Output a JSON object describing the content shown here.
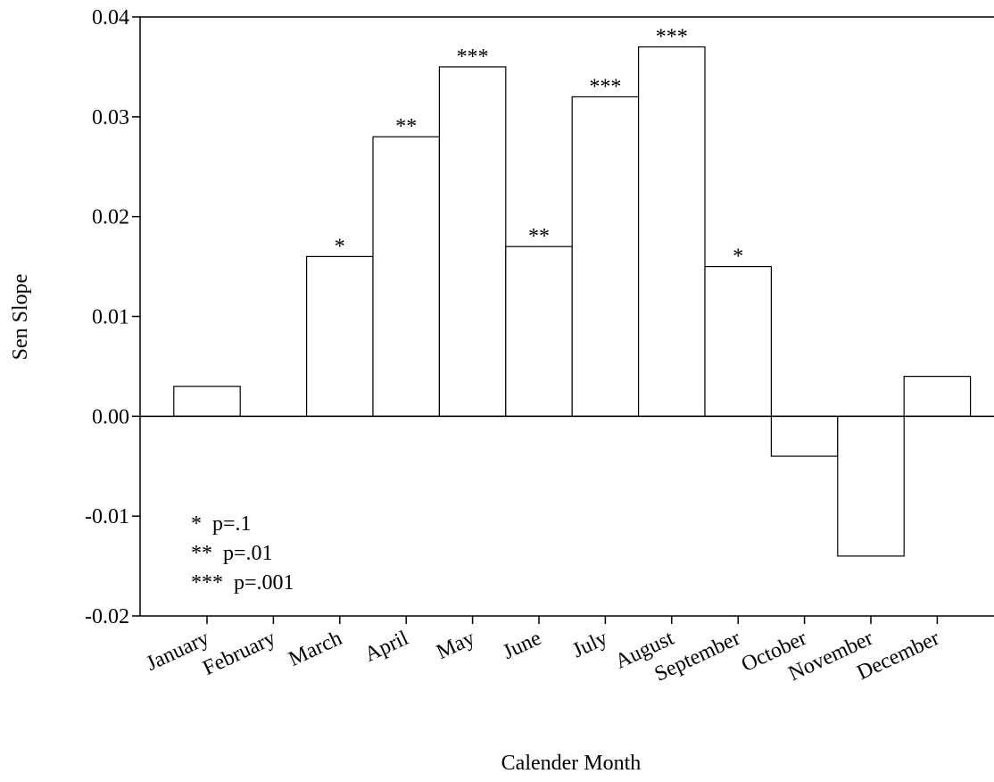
{
  "chart_data": {
    "type": "bar",
    "x_label": "Calender Month",
    "y_label": "Sen Slope",
    "categories": [
      "January",
      "February",
      "March",
      "April",
      "May",
      "June",
      "July",
      "August",
      "September",
      "October",
      "November",
      "December"
    ],
    "values": [
      0.003,
      0,
      0.016,
      0.028,
      0.035,
      0.017,
      0.032,
      0.037,
      0.015,
      -0.004,
      -0.014,
      0.004
    ],
    "significance": [
      null,
      null,
      "*",
      "**",
      "***",
      "**",
      "***",
      "***",
      "*",
      null,
      null,
      null
    ],
    "legend_notes": [
      "*  p=.1",
      "**  p=.01",
      "***  p=.001"
    ],
    "color": "#ffffff",
    "ylim": [
      -0.02,
      0.04
    ],
    "yticks": [
      -0.02,
      -0.01,
      {
        "value": 0,
        "label": "0.00"
      },
      0.01,
      0.02,
      0.03,
      0.04
    ]
  }
}
